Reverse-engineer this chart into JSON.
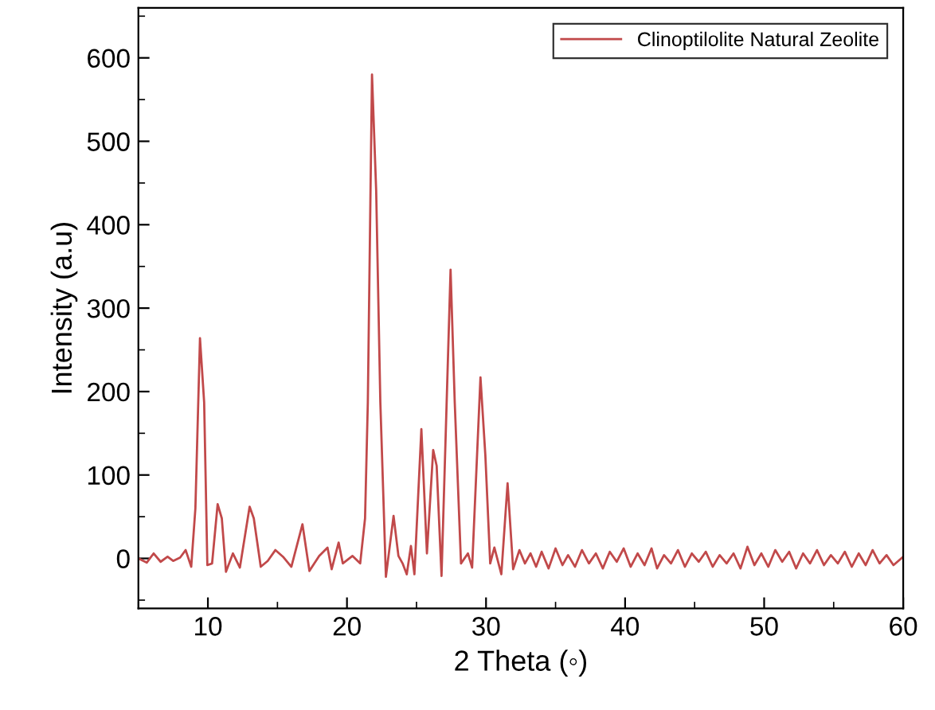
{
  "chart_data": {
    "type": "line",
    "xlabel": "2 Theta (◦)",
    "ylabel": "Intensity (a.u)",
    "xlim": [
      5,
      60
    ],
    "xticks": [
      10,
      20,
      30,
      40,
      50,
      60
    ],
    "ylim": [
      -60,
      660
    ],
    "yticks": [
      0,
      100,
      200,
      300,
      400,
      500,
      600
    ],
    "grid": false,
    "legend": "top right",
    "marker": "none",
    "line_style": "solid",
    "series": [
      {
        "name": "Clinoptilolite Natural Zeolite",
        "color": "#c1494a",
        "x": [
          5,
          5.6,
          6.1,
          6.6,
          7.1,
          7.5,
          8.0,
          8.4,
          8.8,
          9.1,
          9.43,
          9.73,
          9.96,
          10.3,
          10.7,
          11.0,
          11.3,
          11.8,
          12.3,
          13.0,
          13.3,
          13.8,
          14.3,
          14.85,
          15.4,
          16.0,
          16.8,
          17.3,
          18.0,
          18.6,
          18.9,
          19.4,
          19.7,
          20.4,
          20.95,
          21.3,
          21.5,
          21.8,
          22.1,
          22.4,
          22.8,
          23.35,
          23.7,
          24.0,
          24.3,
          24.6,
          24.85,
          25.35,
          25.75,
          26.2,
          26.45,
          26.8,
          27.45,
          27.75,
          28.2,
          28.7,
          29.0,
          29.6,
          29.95,
          30.3,
          30.6,
          31.1,
          31.55,
          31.95,
          32.4,
          32.8,
          33.2,
          33.6,
          34.0,
          34.5,
          35.0,
          35.5,
          35.9,
          36.4,
          36.9,
          37.4,
          37.9,
          38.4,
          38.9,
          39.4,
          39.9,
          40.4,
          40.9,
          41.4,
          41.9,
          42.3,
          42.8,
          43.3,
          43.8,
          44.3,
          44.8,
          45.3,
          45.8,
          46.3,
          46.8,
          47.3,
          47.8,
          48.3,
          48.8,
          49.3,
          49.8,
          50.3,
          50.8,
          51.3,
          51.8,
          52.3,
          52.8,
          53.3,
          53.8,
          54.3,
          54.8,
          55.3,
          55.8,
          56.3,
          56.8,
          57.3,
          57.8,
          58.3,
          58.8,
          59.3,
          60
        ],
        "values": [
          0,
          -5,
          6,
          -4,
          2,
          -3,
          1,
          10,
          -10,
          60,
          264,
          187,
          -8,
          -6,
          65,
          48,
          -16,
          6,
          -11,
          62,
          48,
          -10,
          -3,
          10,
          2,
          -10,
          41,
          -15,
          3,
          13,
          -13,
          19,
          -6,
          3,
          -6,
          48,
          187,
          580,
          441,
          187,
          -22,
          51,
          3,
          -6,
          -19,
          15,
          -19,
          155,
          6,
          130,
          111,
          -21,
          346,
          187,
          -6,
          6,
          -11,
          217,
          124,
          -6,
          13,
          -19,
          90,
          -13,
          10,
          -6,
          6,
          -10,
          8,
          -12,
          12,
          -8,
          4,
          -10,
          10,
          -6,
          6,
          -12,
          8,
          -4,
          12,
          -10,
          6,
          -8,
          12,
          -12,
          4,
          -6,
          10,
          -10,
          6,
          -4,
          8,
          -10,
          4,
          -6,
          6,
          -12,
          14,
          -8,
          6,
          -10,
          10,
          -4,
          8,
          -12,
          6,
          -6,
          10,
          -8,
          4,
          -6,
          8,
          -10,
          6,
          -8,
          10,
          -6,
          4,
          -8,
          2
        ]
      }
    ]
  }
}
